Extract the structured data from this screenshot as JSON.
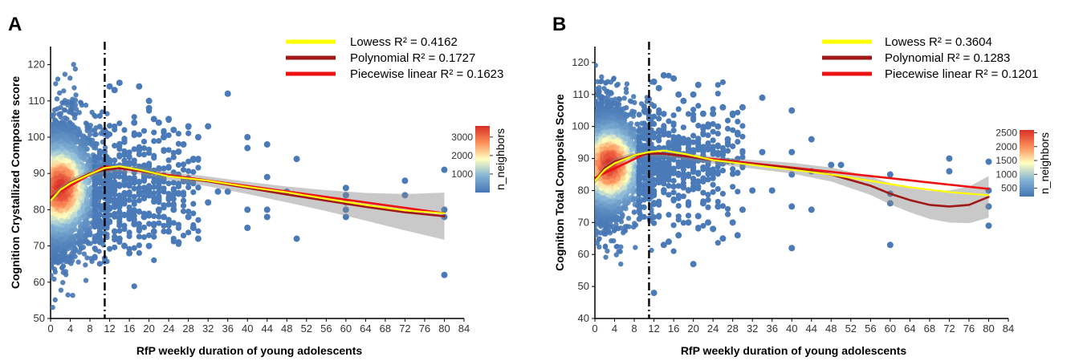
{
  "chart_data": [
    {
      "panel": "A",
      "type": "scatter",
      "xlabel": "RfP weekly duration of young adolescents",
      "ylabel": "Cognition Crystallized Composite score",
      "xlim": [
        0,
        84
      ],
      "ylim": [
        50,
        125
      ],
      "xticks": [
        0,
        4,
        8,
        12,
        16,
        20,
        24,
        28,
        32,
        36,
        40,
        44,
        48,
        52,
        56,
        60,
        64,
        68,
        72,
        76,
        80,
        84
      ],
      "yticks": [
        50,
        60,
        70,
        80,
        90,
        100,
        110,
        120
      ],
      "cutoff_x": 11,
      "legend_placement": "top-right",
      "colorbar": {
        "title": "n_neighbors",
        "ticks": [
          1000,
          2000,
          3000
        ],
        "range": [
          0,
          3600
        ]
      },
      "density_center": {
        "x": 2,
        "y": 86
      },
      "point_color": "#4a7ab8",
      "scatter_points": [
        [
          12,
          114
        ],
        [
          13,
          113
        ],
        [
          14,
          115
        ],
        [
          14,
          72
        ],
        [
          15,
          70
        ],
        [
          16,
          68
        ],
        [
          17,
          104
        ],
        [
          17,
          76
        ],
        [
          18,
          114
        ],
        [
          19,
          78
        ],
        [
          20,
          110
        ],
        [
          20,
          108
        ],
        [
          20,
          70
        ],
        [
          21,
          105
        ],
        [
          21,
          74
        ],
        [
          22,
          104
        ],
        [
          22,
          80
        ],
        [
          23,
          100
        ],
        [
          23,
          78
        ],
        [
          24,
          105
        ],
        [
          24,
          74
        ],
        [
          25,
          102
        ],
        [
          25,
          80
        ],
        [
          26,
          96
        ],
        [
          26,
          71
        ],
        [
          27,
          98
        ],
        [
          28,
          103
        ],
        [
          28,
          78
        ],
        [
          29,
          94
        ],
        [
          29,
          75
        ],
        [
          30,
          100
        ],
        [
          30,
          72
        ],
        [
          32,
          103
        ],
        [
          32,
          82
        ],
        [
          34,
          85
        ],
        [
          36,
          112
        ],
        [
          36,
          85
        ],
        [
          40,
          100
        ],
        [
          40,
          97
        ],
        [
          40,
          80
        ],
        [
          40,
          75
        ],
        [
          44,
          98
        ],
        [
          44,
          89
        ],
        [
          44,
          80
        ],
        [
          44,
          78
        ],
        [
          48,
          85
        ],
        [
          50,
          94
        ],
        [
          50,
          72
        ],
        [
          60,
          86
        ],
        [
          60,
          84
        ],
        [
          60,
          82
        ],
        [
          60,
          80
        ],
        [
          60,
          78
        ],
        [
          72,
          88
        ],
        [
          72,
          84
        ],
        [
          80,
          91
        ],
        [
          80,
          80
        ],
        [
          80,
          78
        ],
        [
          80,
          62
        ]
      ],
      "series": [
        {
          "name": "Lowess",
          "r2_label": "R² = 0.4162",
          "color": "#ffff00",
          "x": [
            0,
            2,
            4,
            8,
            11,
            14,
            18,
            24,
            32,
            40,
            48,
            56,
            64,
            72,
            80
          ],
          "y": [
            82.5,
            85.5,
            87.3,
            89.8,
            91.5,
            92.0,
            91.0,
            89.2,
            88.0,
            86.3,
            84.8,
            83.0,
            81.3,
            79.8,
            79.0
          ]
        },
        {
          "name": "Polynomial",
          "r2_label": "R² = 0.1727",
          "color": "#a01818",
          "x": [
            0,
            2,
            4,
            8,
            11,
            14,
            18,
            24,
            32,
            40,
            48,
            56,
            64,
            72,
            80
          ],
          "y": [
            83.0,
            85.5,
            87.5,
            90.0,
            91.0,
            91.5,
            90.8,
            89.3,
            87.8,
            86.0,
            84.2,
            82.5,
            80.8,
            79.3,
            78.2
          ]
        },
        {
          "name": "Piecewise linear",
          "r2_label": "R² = 0.1623",
          "color": "#ee1111",
          "x": [
            0,
            11,
            80
          ],
          "y": [
            83.5,
            92.0,
            79.0
          ]
        }
      ]
    },
    {
      "panel": "B",
      "type": "scatter",
      "xlabel": "RfP weekly duration of young adolescents",
      "ylabel": "Cognition Total Composite Score",
      "xlim": [
        0,
        84
      ],
      "ylim": [
        40,
        125
      ],
      "xticks": [
        0,
        4,
        8,
        12,
        16,
        20,
        24,
        28,
        32,
        36,
        40,
        44,
        48,
        52,
        56,
        60,
        64,
        68,
        72,
        76,
        80,
        84
      ],
      "yticks": [
        40,
        50,
        60,
        70,
        80,
        90,
        100,
        110,
        120
      ],
      "cutoff_x": 11,
      "legend_placement": "top-right",
      "colorbar": {
        "title": "n_neighbors",
        "ticks": [
          500,
          1000,
          1500,
          2000,
          2500
        ],
        "range": [
          200,
          2600
        ]
      },
      "density_center": {
        "x": 3,
        "y": 88
      },
      "point_color": "#4a7ab8",
      "scatter_points": [
        [
          12,
          114
        ],
        [
          12,
          48
        ],
        [
          13,
          112
        ],
        [
          14,
          116
        ],
        [
          14,
          63
        ],
        [
          15,
          64
        ],
        [
          16,
          115
        ],
        [
          17,
          110
        ],
        [
          17,
          66
        ],
        [
          18,
          108
        ],
        [
          19,
          70
        ],
        [
          20,
          110
        ],
        [
          20,
          57
        ],
        [
          21,
          113
        ],
        [
          21,
          72
        ],
        [
          22,
          104
        ],
        [
          22,
          76
        ],
        [
          23,
          100
        ],
        [
          23,
          70
        ],
        [
          24,
          104
        ],
        [
          24,
          68
        ],
        [
          25,
          100
        ],
        [
          25,
          75
        ],
        [
          26,
          106
        ],
        [
          26,
          65
        ],
        [
          27,
          96
        ],
        [
          28,
          104
        ],
        [
          28,
          70
        ],
        [
          29,
          98
        ],
        [
          29,
          66
        ],
        [
          30,
          106
        ],
        [
          30,
          74
        ],
        [
          32,
          80
        ],
        [
          34,
          109
        ],
        [
          34,
          92
        ],
        [
          36,
          80
        ],
        [
          40,
          105
        ],
        [
          40,
          92
        ],
        [
          40,
          85
        ],
        [
          40,
          75
        ],
        [
          40,
          62
        ],
        [
          44,
          96
        ],
        [
          44,
          86
        ],
        [
          44,
          74
        ],
        [
          48,
          88
        ],
        [
          50,
          88
        ],
        [
          60,
          85
        ],
        [
          60,
          79
        ],
        [
          60,
          76
        ],
        [
          60,
          63
        ],
        [
          72,
          90
        ],
        [
          72,
          86
        ],
        [
          80,
          89
        ],
        [
          80,
          80
        ],
        [
          80,
          75
        ],
        [
          80,
          69
        ]
      ],
      "series": [
        {
          "name": "Lowess",
          "r2_label": "R² = 0.3604",
          "color": "#ffff00",
          "x": [
            0,
            2,
            4,
            8,
            11,
            14,
            18,
            24,
            32,
            40,
            48,
            56,
            64,
            72,
            80
          ],
          "y": [
            83.0,
            86.5,
            88.5,
            91.0,
            92.0,
            92.5,
            91.5,
            89.5,
            88.0,
            86.5,
            85.0,
            83.0,
            81.0,
            79.5,
            78.5
          ]
        },
        {
          "name": "Polynomial",
          "r2_label": "R² = 0.1283",
          "color": "#a01818",
          "x": [
            0,
            2,
            4,
            8,
            11,
            14,
            18,
            24,
            32,
            40,
            48,
            56,
            60,
            64,
            68,
            72,
            76,
            80
          ],
          "y": [
            83.0,
            87.0,
            89.0,
            91.0,
            91.5,
            91.5,
            90.8,
            89.5,
            88.2,
            87.0,
            85.0,
            81.5,
            79.0,
            77.0,
            75.5,
            75.0,
            75.5,
            78.0
          ]
        },
        {
          "name": "Piecewise linear",
          "r2_label": "R² = 0.1201",
          "color": "#ee1111",
          "x": [
            0,
            11,
            80
          ],
          "y": [
            84.0,
            92.0,
            80.5
          ]
        }
      ]
    }
  ]
}
